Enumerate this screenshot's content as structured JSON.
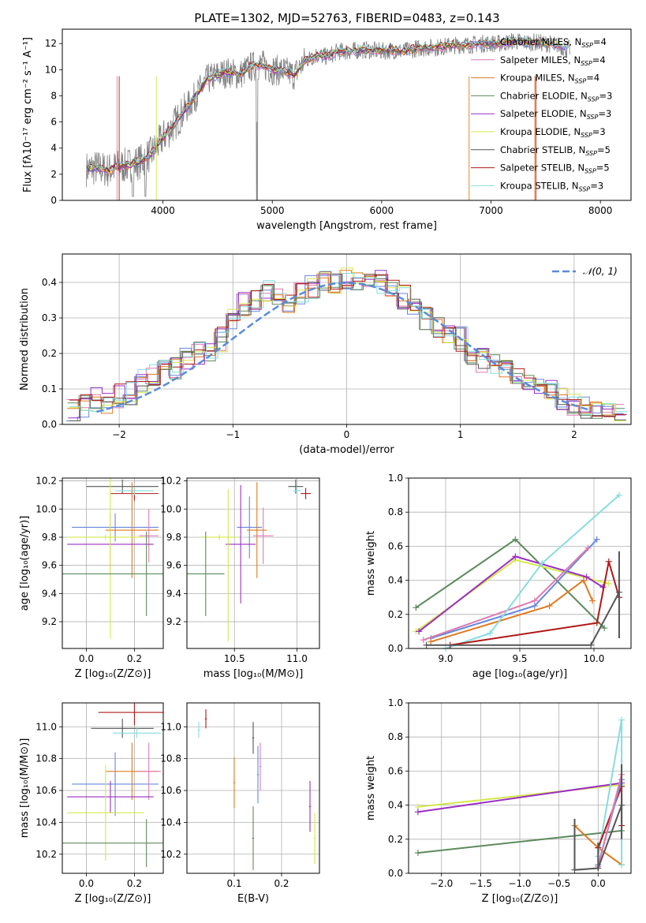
{
  "chart_data": [
    {
      "type": "line",
      "title": "PLATE=1302, MJD=52763, FIBERID=0483, z=0.143",
      "xlabel": "wavelength [Angstrom, rest frame]",
      "ylabel": "Flux [fλ10⁻¹⁷ erg cm⁻² s⁻¹ A⁻¹]",
      "xlim": [
        3080,
        8280
      ],
      "ylim": [
        0,
        13.1
      ],
      "xticks": [
        "4000",
        "5000",
        "6000",
        "7000",
        "8000"
      ],
      "yticks": [
        "0",
        "2",
        "4",
        "6",
        "8",
        "10",
        "12"
      ],
      "grid": false,
      "legend_position": "top-right",
      "data_x": [
        3300,
        3400,
        3500,
        3600,
        3700,
        3800,
        3900,
        4000,
        4100,
        4200,
        4300,
        4400,
        4500,
        4600,
        4700,
        4800,
        4900,
        5000,
        5100,
        5200,
        5300,
        5400,
        5500,
        5600,
        5700,
        5800,
        5900,
        6000,
        6100,
        6200,
        6300,
        6400,
        6500,
        6600,
        6700,
        6800,
        6900,
        7000,
        7100,
        7200,
        7300,
        7400,
        7500,
        7600,
        7700
      ],
      "data_y": [
        2.4,
        2.5,
        2.3,
        2.6,
        2.7,
        3.0,
        3.6,
        4.8,
        5.8,
        6.9,
        8.0,
        9.2,
        9.6,
        9.8,
        9.6,
        10.2,
        10.4,
        10.0,
        9.9,
        9.6,
        10.7,
        11.1,
        11.0,
        11.4,
        11.4,
        11.5,
        11.5,
        11.4,
        11.5,
        11.4,
        11.6,
        11.7,
        11.7,
        11.8,
        11.9,
        11.9,
        12.0,
        12.0,
        12.0,
        12.2,
        12.1,
        12.1,
        12.0,
        11.9,
        11.6
      ],
      "series": [
        {
          "name": "Chabrier MILES, N$_{SSP}$=4",
          "color": "#6688dd"
        },
        {
          "name": "Salpeter MILES, N$_{SSP}$=4",
          "color": "#e07ab0"
        },
        {
          "name": "Kroupa MILES, N$_{SSP}$=4",
          "color": "#e07a1e"
        },
        {
          "name": "Chabrier ELODIE, N$_{SSP}$=3",
          "color": "#5c8a5c"
        },
        {
          "name": "Salpeter ELODIE, N$_{SSP}$=3",
          "color": "#9b2fc4"
        },
        {
          "name": "Kroupa ELODIE, N$_{SSP}$=3",
          "color": "#d4e84a"
        },
        {
          "name": "Chabrier STELIB, N$_{SSP}$=5",
          "color": "#555555"
        },
        {
          "name": "Salpeter STELIB, N$_{SSP}$=5",
          "color": "#b01818"
        },
        {
          "name": "Kroupa STELIB, N$_{SSP}$=3",
          "color": "#86dde0"
        }
      ]
    },
    {
      "type": "line",
      "xlabel": "(data-model)/error",
      "ylabel": "Normed distribution",
      "xlim": [
        -2.5,
        2.5
      ],
      "ylim": [
        0,
        0.48
      ],
      "xticks": [
        "−2",
        "−1",
        "0",
        "1",
        "2"
      ],
      "yticks": [
        "0.0",
        "0.1",
        "0.2",
        "0.3",
        "0.4"
      ],
      "grid": true,
      "legend_position": "top-right",
      "legend": "𝒩(0, 1)",
      "bins": [
        -2.4,
        -2.3,
        -2.2,
        -2.1,
        -2.0,
        -1.9,
        -1.8,
        -1.7,
        -1.6,
        -1.5,
        -1.4,
        -1.3,
        -1.2,
        -1.1,
        -1.0,
        -0.9,
        -0.8,
        -0.7,
        -0.6,
        -0.5,
        -0.4,
        -0.3,
        -0.2,
        -0.1,
        0.0,
        0.1,
        0.2,
        0.3,
        0.4,
        0.5,
        0.6,
        0.7,
        0.8,
        0.9,
        1.0,
        1.1,
        1.2,
        1.3,
        1.4,
        1.5,
        1.6,
        1.7,
        1.8,
        1.9,
        2.0,
        2.1,
        2.2,
        2.3,
        2.4
      ],
      "values": [
        0.04,
        0.05,
        0.07,
        0.06,
        0.08,
        0.09,
        0.12,
        0.14,
        0.15,
        0.16,
        0.19,
        0.2,
        0.21,
        0.24,
        0.3,
        0.34,
        0.35,
        0.37,
        0.36,
        0.35,
        0.37,
        0.39,
        0.4,
        0.39,
        0.41,
        0.41,
        0.42,
        0.4,
        0.38,
        0.36,
        0.32,
        0.3,
        0.28,
        0.26,
        0.24,
        0.2,
        0.18,
        0.17,
        0.16,
        0.13,
        0.11,
        0.1,
        0.09,
        0.07,
        0.06,
        0.05,
        0.04,
        0.03,
        0.03
      ]
    },
    {
      "type": "scatter",
      "xlabel": "Z [log₁₀(Z/Z⊙)]",
      "ylabel": "age  [log₁₀(age/yr)]",
      "xlim": [
        -0.1,
        0.32
      ],
      "ylim": [
        9.01,
        10.22
      ],
      "xticks": [
        "0.0",
        "0.2"
      ],
      "yticks": [
        "9.2",
        "9.4",
        "9.6",
        "9.8",
        "10.0",
        "10.2"
      ],
      "grid": true
    },
    {
      "type": "scatter",
      "xlabel": "mass [log₁₀(M/M⊙)]",
      "xlim": [
        10.12,
        11.18
      ],
      "ylim": [
        9.01,
        10.22
      ],
      "xticks": [
        "10.5",
        "11.0"
      ],
      "yticks": [
        "9.2",
        "9.4",
        "9.6",
        "9.8",
        "10.0",
        "10.2"
      ],
      "grid": true
    },
    {
      "type": "line",
      "xlabel": "age  [log₁₀(age/yr)]",
      "ylabel": "mass weight",
      "xlim": [
        8.75,
        10.25
      ],
      "ylim": [
        0,
        1
      ],
      "xticks": [
        "9.0",
        "9.5",
        "10.0"
      ],
      "yticks": [
        "0.0",
        "0.2",
        "0.4",
        "0.6",
        "0.8",
        "1.0"
      ],
      "grid": true
    },
    {
      "type": "scatter",
      "xlabel": "Z [log₁₀(Z/Z⊙)]",
      "ylabel": "mass [log₁₀(M/M⊙)]",
      "xlim": [
        -0.1,
        0.32
      ],
      "ylim": [
        10.08,
        11.15
      ],
      "xticks": [
        "0.0",
        "0.2"
      ],
      "yticks": [
        "10.2",
        "10.4",
        "10.6",
        "10.8",
        "11.0"
      ],
      "grid": true
    },
    {
      "type": "scatter",
      "xlabel": "E(B-V)",
      "xlim": [
        0.0,
        0.28
      ],
      "ylim": [
        10.08,
        11.15
      ],
      "xticks": [
        "0.1",
        "0.2"
      ],
      "yticks": [
        "10.2",
        "10.4",
        "10.6",
        "10.8",
        "11.0"
      ],
      "grid": true
    },
    {
      "type": "line",
      "xlabel": "Z [log₁₀(Z/Z⊙)]",
      "ylabel": "mass weight",
      "xlim": [
        -2.42,
        0.42
      ],
      "ylim": [
        0,
        1
      ],
      "xticks": [
        "−2.0",
        "−1.5",
        "−1.0",
        "−0.5",
        "0.0"
      ],
      "yticks": [
        "0.0",
        "0.2",
        "0.4",
        "0.6",
        "0.8",
        "1.0"
      ],
      "grid": true
    }
  ]
}
